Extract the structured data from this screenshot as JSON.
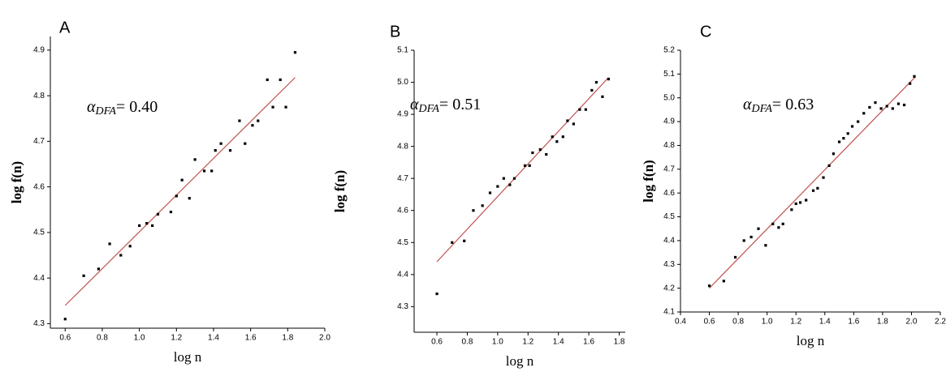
{
  "chart_data": [
    {
      "type": "scatter",
      "label": "A",
      "annotation": {
        "symbol": "α",
        "subscript": "DFA",
        "text": "= 0.40"
      },
      "xlabel": "log n",
      "ylabel": "log f(n)",
      "x": [
        0.6,
        0.7,
        0.78,
        0.84,
        0.9,
        0.95,
        1.0,
        1.04,
        1.07,
        1.1,
        1.17,
        1.2,
        1.23,
        1.27,
        1.3,
        1.35,
        1.39,
        1.41,
        1.44,
        1.49,
        1.54,
        1.57,
        1.61,
        1.64,
        1.69,
        1.72,
        1.76,
        1.79,
        1.84
      ],
      "values": [
        4.31,
        4.405,
        4.42,
        4.475,
        4.45,
        4.47,
        4.515,
        4.52,
        4.515,
        4.54,
        4.545,
        4.58,
        4.615,
        4.575,
        4.66,
        4.635,
        4.635,
        4.68,
        4.695,
        4.68,
        4.745,
        4.695,
        4.735,
        4.745,
        4.835,
        4.775,
        4.835,
        4.775,
        4.895
      ],
      "color": "#000000",
      "fit": {
        "x": [
          0.6,
          1.84
        ],
        "y": [
          4.34,
          4.84
        ],
        "color": "#c0504d"
      },
      "xlim": [
        0.52,
        2.0
      ],
      "xticks": [
        0.6,
        0.8,
        {
          "value": 1.0,
          "label": "1.0"
        },
        1.2,
        1.4,
        1.6,
        1.8,
        {
          "value": 2.0,
          "label": "2.0"
        }
      ],
      "ylim": [
        4.29,
        4.93
      ],
      "yticks": [
        4.3,
        4.4,
        4.5,
        4.6,
        4.7,
        4.8,
        4.9
      ]
    },
    {
      "type": "scatter",
      "label": "B",
      "annotation": {
        "symbol": "α",
        "subscript": "DFA",
        "text": "= 0.51"
      },
      "xlabel": "log n",
      "ylabel": "log f(n)",
      "x": [
        0.6,
        0.7,
        0.78,
        0.84,
        0.9,
        0.95,
        1.0,
        1.04,
        1.08,
        1.11,
        1.18,
        1.21,
        1.23,
        1.28,
        1.32,
        1.36,
        1.39,
        1.43,
        1.46,
        1.5,
        1.54,
        1.58,
        1.62,
        1.65,
        1.69,
        1.73
      ],
      "values": [
        4.34,
        4.5,
        4.505,
        4.6,
        4.615,
        4.655,
        4.675,
        4.7,
        4.68,
        4.7,
        4.74,
        4.74,
        4.78,
        4.79,
        4.775,
        4.83,
        4.815,
        4.83,
        4.88,
        4.87,
        4.915,
        4.915,
        4.975,
        5.0,
        4.955,
        5.01
      ],
      "color": "#000000",
      "fit": {
        "x": [
          0.6,
          1.73
        ],
        "y": [
          4.44,
          5.015
        ],
        "color": "#c0504d"
      },
      "xlim": [
        0.45,
        1.84
      ],
      "xticks": [
        0.6,
        0.8,
        {
          "value": 1.0,
          "label": "1.0"
        },
        1.2,
        1.4,
        1.6,
        1.8
      ],
      "ylim": [
        4.22,
        5.1
      ],
      "yticks": [
        4.3,
        4.4,
        4.5,
        4.6,
        4.7,
        4.8,
        4.9,
        {
          "value": 5.0,
          "label": "5.0"
        },
        5.1
      ]
    },
    {
      "type": "scatter",
      "label": "C",
      "annotation": {
        "symbol": "α",
        "subscript": "DFA",
        "text": "= 0.63"
      },
      "xlabel": "log n",
      "ylabel": "log f(n)",
      "x": [
        0.6,
        0.7,
        0.78,
        0.84,
        0.89,
        0.94,
        0.99,
        1.04,
        1.08,
        1.11,
        1.17,
        1.2,
        1.23,
        1.27,
        1.32,
        1.35,
        1.39,
        1.43,
        1.46,
        1.5,
        1.53,
        1.56,
        1.59,
        1.63,
        1.67,
        1.71,
        1.75,
        1.79,
        1.83,
        1.87,
        1.91,
        1.95,
        1.99,
        2.02
      ],
      "values": [
        4.21,
        4.23,
        4.33,
        4.4,
        4.415,
        4.45,
        4.38,
        4.47,
        4.455,
        4.47,
        4.53,
        4.555,
        4.56,
        4.57,
        4.61,
        4.62,
        4.665,
        4.715,
        4.765,
        4.815,
        4.83,
        4.85,
        4.88,
        4.9,
        4.935,
        4.96,
        4.98,
        4.955,
        4.965,
        4.955,
        4.975,
        4.97,
        5.06,
        5.09
      ],
      "color": "#000000",
      "fit": {
        "x": [
          0.6,
          2.03
        ],
        "y": [
          4.2,
          5.09
        ],
        "color": "#c0504d"
      },
      "xlim": [
        0.4,
        2.2
      ],
      "xticks": [
        0.4,
        0.6,
        0.8,
        {
          "value": 1.0,
          "label": "1.0"
        },
        1.2,
        1.4,
        1.6,
        1.8,
        {
          "value": 2.0,
          "label": "2.0"
        },
        2.2
      ],
      "ylim": [
        4.1,
        5.2
      ],
      "yticks": [
        4.1,
        4.2,
        4.3,
        4.4,
        4.5,
        4.6,
        4.7,
        4.8,
        4.9,
        {
          "value": 5.0,
          "label": "5.0"
        },
        5.1,
        5.2
      ]
    }
  ]
}
